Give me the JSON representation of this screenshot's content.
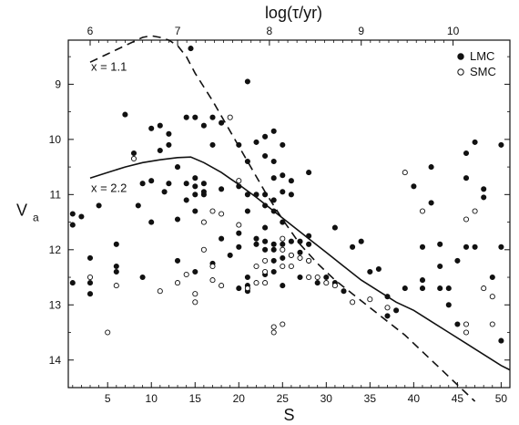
{
  "chart_data": {
    "type": "scatter",
    "x_axis": {
      "label": "S",
      "range": [
        0.5,
        51
      ],
      "ticks": [
        5,
        10,
        15,
        20,
        25,
        30,
        35,
        40,
        45,
        50
      ]
    },
    "top_axis": {
      "label": "log(τ/yr)",
      "ticks": [
        6,
        7,
        8,
        9,
        10
      ],
      "tick_positions_S": [
        3,
        13,
        23.5,
        34,
        44.5
      ]
    },
    "y_axis": {
      "label": "V",
      "label_subscript": "a",
      "range": [
        14.5,
        8.2
      ],
      "inverted": true,
      "ticks": [
        9,
        10,
        11,
        12,
        13,
        14
      ]
    },
    "legend": {
      "placement": "top-right",
      "entries": [
        {
          "label": "LMC",
          "marker": "filled-circle"
        },
        {
          "label": "SMC",
          "marker": "open-circle"
        }
      ]
    },
    "annotations": [
      {
        "text": "x = 1.1",
        "S": 3.1,
        "V": 8.75
      },
      {
        "text": "x = 2.2",
        "S": 3.1,
        "V": 10.95
      }
    ],
    "curves": [
      {
        "name": "x = 1.1",
        "style": "dashed",
        "points": [
          [
            3,
            8.6
          ],
          [
            5,
            8.45
          ],
          [
            7,
            8.3
          ],
          [
            9,
            8.15
          ],
          [
            10,
            8.12
          ],
          [
            11,
            8.15
          ],
          [
            12,
            8.2
          ],
          [
            13,
            8.3
          ],
          [
            14,
            8.5
          ],
          [
            15,
            8.8
          ],
          [
            17,
            9.3
          ],
          [
            19,
            9.85
          ],
          [
            21,
            10.4
          ],
          [
            23,
            10.95
          ],
          [
            25,
            11.45
          ],
          [
            27,
            11.9
          ],
          [
            29,
            12.25
          ],
          [
            31,
            12.55
          ],
          [
            33,
            12.8
          ],
          [
            35,
            13.05
          ],
          [
            37,
            13.3
          ],
          [
            39,
            13.55
          ],
          [
            41,
            13.85
          ],
          [
            43,
            14.15
          ],
          [
            45,
            14.45
          ],
          [
            47,
            14.75
          ]
        ]
      },
      {
        "name": "x = 2.2",
        "style": "solid",
        "points": [
          [
            3,
            10.7
          ],
          [
            5,
            10.6
          ],
          [
            7,
            10.5
          ],
          [
            9,
            10.42
          ],
          [
            11,
            10.37
          ],
          [
            13,
            10.33
          ],
          [
            14.5,
            10.32
          ],
          [
            16,
            10.42
          ],
          [
            18,
            10.6
          ],
          [
            20,
            10.82
          ],
          [
            22,
            11.05
          ],
          [
            24,
            11.3
          ],
          [
            26,
            11.55
          ],
          [
            28,
            11.8
          ],
          [
            30,
            12.05
          ],
          [
            32,
            12.3
          ],
          [
            34,
            12.55
          ],
          [
            36,
            12.75
          ],
          [
            38,
            12.95
          ],
          [
            40,
            13.1
          ],
          [
            42,
            13.3
          ],
          [
            44,
            13.5
          ],
          [
            46,
            13.7
          ],
          [
            48,
            13.9
          ],
          [
            50,
            14.1
          ],
          [
            51,
            14.18
          ]
        ]
      }
    ],
    "series": [
      {
        "name": "LMC",
        "marker": "filled",
        "points": [
          [
            1,
            11.35
          ],
          [
            1,
            11.55
          ],
          [
            1,
            12.6
          ],
          [
            2,
            11.4
          ],
          [
            3,
            12.15
          ],
          [
            3,
            12.6
          ],
          [
            3,
            12.8
          ],
          [
            4,
            11.2
          ],
          [
            6,
            11.9
          ],
          [
            6,
            12.3
          ],
          [
            6,
            12.4
          ],
          [
            7,
            9.55
          ],
          [
            8,
            10.25
          ],
          [
            8.5,
            11.2
          ],
          [
            9,
            10.8
          ],
          [
            9,
            12.5
          ],
          [
            10,
            9.8
          ],
          [
            10,
            10.75
          ],
          [
            10,
            11.5
          ],
          [
            11,
            9.75
          ],
          [
            11,
            10.2
          ],
          [
            11.5,
            10.95
          ],
          [
            12,
            9.9
          ],
          [
            12,
            10.1
          ],
          [
            12,
            10.8
          ],
          [
            13,
            10.5
          ],
          [
            13,
            11.45
          ],
          [
            13,
            12.2
          ],
          [
            14,
            9.6
          ],
          [
            14,
            10.8
          ],
          [
            14,
            11.1
          ],
          [
            14.5,
            8.35
          ],
          [
            15,
            9.6
          ],
          [
            15,
            10.7
          ],
          [
            15,
            10.85
          ],
          [
            15,
            11.0
          ],
          [
            15,
            11.3
          ],
          [
            15,
            12.4
          ],
          [
            16,
            9.75
          ],
          [
            16,
            10.8
          ],
          [
            16,
            10.95
          ],
          [
            16,
            11.0
          ],
          [
            17,
            9.6
          ],
          [
            17,
            10.1
          ],
          [
            17,
            12.25
          ],
          [
            18,
            9.7
          ],
          [
            18,
            10.9
          ],
          [
            18,
            11.8
          ],
          [
            19,
            12.1
          ],
          [
            20,
            10.1
          ],
          [
            20,
            10.85
          ],
          [
            20,
            11.7
          ],
          [
            20,
            11.95
          ],
          [
            20,
            12.7
          ],
          [
            21,
            8.95
          ],
          [
            21,
            10.4
          ],
          [
            21,
            11.0
          ],
          [
            21,
            11.3
          ],
          [
            21,
            12.5
          ],
          [
            21,
            12.65
          ],
          [
            21,
            12.75
          ],
          [
            22,
            10.05
          ],
          [
            22,
            11.0
          ],
          [
            22,
            11.8
          ],
          [
            22,
            11.9
          ],
          [
            23,
            9.95
          ],
          [
            23,
            10.3
          ],
          [
            23,
            11.0
          ],
          [
            23,
            11.2
          ],
          [
            23,
            11.6
          ],
          [
            23,
            11.85
          ],
          [
            23,
            12.0
          ],
          [
            23,
            12.45
          ],
          [
            24,
            9.85
          ],
          [
            24,
            10.4
          ],
          [
            24,
            10.7
          ],
          [
            24,
            11.1
          ],
          [
            24,
            11.3
          ],
          [
            24,
            11.9
          ],
          [
            24,
            12.0
          ],
          [
            24,
            12.2
          ],
          [
            24,
            12.4
          ],
          [
            25,
            10.1
          ],
          [
            25,
            10.65
          ],
          [
            25,
            10.95
          ],
          [
            25,
            11.5
          ],
          [
            25,
            11.9
          ],
          [
            25,
            12.15
          ],
          [
            25,
            12.65
          ],
          [
            26,
            10.75
          ],
          [
            26,
            11.0
          ],
          [
            26,
            11.85
          ],
          [
            26,
            12.1
          ],
          [
            27,
            11.85
          ],
          [
            27,
            12.05
          ],
          [
            27,
            12.5
          ],
          [
            28,
            10.6
          ],
          [
            28,
            11.75
          ],
          [
            28,
            11.9
          ],
          [
            28,
            12.2
          ],
          [
            29,
            12.6
          ],
          [
            30,
            12.5
          ],
          [
            31,
            11.6
          ],
          [
            31,
            12.6
          ],
          [
            32,
            12.75
          ],
          [
            33,
            11.95
          ],
          [
            34,
            11.85
          ],
          [
            35,
            12.4
          ],
          [
            36,
            12.35
          ],
          [
            37,
            12.85
          ],
          [
            37,
            13.2
          ],
          [
            38,
            13.1
          ],
          [
            39,
            12.7
          ],
          [
            40,
            10.85
          ],
          [
            41,
            11.95
          ],
          [
            41,
            12.55
          ],
          [
            41,
            12.7
          ],
          [
            42,
            10.5
          ],
          [
            42,
            11.15
          ],
          [
            43,
            11.9
          ],
          [
            43,
            12.3
          ],
          [
            43,
            12.7
          ],
          [
            44,
            12.7
          ],
          [
            44,
            13.0
          ],
          [
            45,
            12.2
          ],
          [
            45,
            13.35
          ],
          [
            46,
            10.25
          ],
          [
            46,
            10.7
          ],
          [
            46,
            11.95
          ],
          [
            47,
            10.05
          ],
          [
            47,
            11.95
          ],
          [
            48,
            10.9
          ],
          [
            48,
            11.05
          ],
          [
            49,
            12.5
          ],
          [
            50,
            10.1
          ],
          [
            50,
            11.95
          ],
          [
            50,
            13.65
          ]
        ]
      },
      {
        "name": "SMC",
        "marker": "open",
        "points": [
          [
            3,
            12.5
          ],
          [
            5,
            13.5
          ],
          [
            6,
            12.65
          ],
          [
            8,
            10.35
          ],
          [
            11,
            12.75
          ],
          [
            13,
            12.6
          ],
          [
            14,
            12.45
          ],
          [
            15,
            12.8
          ],
          [
            15,
            12.95
          ],
          [
            16,
            11.5
          ],
          [
            16,
            12.0
          ],
          [
            17,
            11.3
          ],
          [
            17,
            12.3
          ],
          [
            17,
            12.55
          ],
          [
            18,
            11.35
          ],
          [
            18,
            12.65
          ],
          [
            19,
            9.6
          ],
          [
            20,
            10.75
          ],
          [
            20,
            11.55
          ],
          [
            21,
            12.7
          ],
          [
            22,
            12.3
          ],
          [
            22,
            12.6
          ],
          [
            23,
            12.2
          ],
          [
            23,
            12.4
          ],
          [
            23,
            12.6
          ],
          [
            24,
            13.4
          ],
          [
            24,
            13.5
          ],
          [
            25,
            11.8
          ],
          [
            25,
            12.0
          ],
          [
            25,
            12.3
          ],
          [
            25,
            13.35
          ],
          [
            26,
            12.1
          ],
          [
            26,
            12.3
          ],
          [
            27,
            12.15
          ],
          [
            28,
            12.2
          ],
          [
            28,
            12.5
          ],
          [
            29,
            12.5
          ],
          [
            30,
            12.6
          ],
          [
            31,
            12.65
          ],
          [
            33,
            12.95
          ],
          [
            35,
            12.9
          ],
          [
            37,
            13.05
          ],
          [
            39,
            10.6
          ],
          [
            41,
            11.3
          ],
          [
            46,
            11.45
          ],
          [
            46,
            13.35
          ],
          [
            46,
            13.5
          ],
          [
            47,
            11.3
          ],
          [
            48,
            12.7
          ],
          [
            49,
            12.85
          ],
          [
            49,
            13.35
          ]
        ]
      }
    ]
  }
}
